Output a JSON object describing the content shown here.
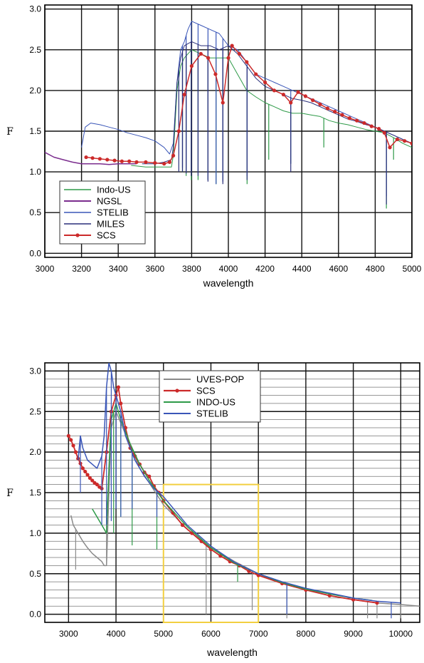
{
  "chart_data": [
    {
      "type": "line",
      "xlabel": "wavelength",
      "ylabel": "F",
      "xlim": [
        3000,
        5000
      ],
      "ylim": [
        -0.05,
        3.05
      ],
      "xticks": [
        3000,
        3200,
        3400,
        3600,
        3800,
        4000,
        4200,
        4400,
        4600,
        4800,
        5000
      ],
      "yticks": [
        "0.0",
        "0.5",
        "1.0",
        "1.5",
        "2.0",
        "2.5",
        "3.0"
      ],
      "grid": true,
      "legend_position": "lower-left",
      "series": [
        {
          "name": "Indo-US",
          "color": "#2e9a48",
          "width": 1,
          "x": [
            3470,
            3550,
            3650,
            3690,
            3700,
            3720,
            3740,
            3760,
            3800,
            3850,
            3900,
            3950,
            4000,
            4050,
            4100,
            4150,
            4200,
            4250,
            4300,
            4350,
            4400,
            4450,
            4500,
            4550,
            4600,
            4650,
            4700,
            4750,
            4800,
            4850,
            4900,
            4950,
            5000
          ],
          "y": [
            1.08,
            1.06,
            1.06,
            1.06,
            1.2,
            2.0,
            2.3,
            2.4,
            2.5,
            2.45,
            2.4,
            2.4,
            2.4,
            2.2,
            2.0,
            1.92,
            1.85,
            1.8,
            1.75,
            1.72,
            1.72,
            1.7,
            1.68,
            1.63,
            1.6,
            1.58,
            1.55,
            1.52,
            1.5,
            1.48,
            1.42,
            1.35,
            1.3
          ],
          "dips": [
            [
              3750,
              1.0
            ],
            [
              3770,
              0.95
            ],
            [
              3798,
              0.9
            ],
            [
              3835,
              0.9
            ],
            [
              3889,
              0.9
            ],
            [
              3933,
              0.85
            ],
            [
              3970,
              0.9
            ],
            [
              4102,
              0.85
            ],
            [
              4220,
              1.15
            ],
            [
              4340,
              1.1
            ],
            [
              4520,
              1.3
            ],
            [
              4861,
              0.55
            ],
            [
              4900,
              1.15
            ]
          ]
        },
        {
          "name": "NGSL",
          "color": "#7b2d8e",
          "width": 1.5,
          "x": [
            3000,
            3050,
            3100,
            3150,
            3200,
            3250,
            3300,
            3350,
            3400,
            3450,
            3500
          ],
          "y": [
            1.24,
            1.18,
            1.15,
            1.12,
            1.1,
            1.1,
            1.1,
            1.09,
            1.1,
            1.1,
            1.1
          ]
        },
        {
          "name": "STELIB",
          "color": "#3a56b8",
          "width": 1,
          "x": [
            3200,
            3220,
            3250,
            3300,
            3350,
            3400,
            3450,
            3500,
            3550,
            3600,
            3650,
            3680,
            3700,
            3720,
            3740,
            3760,
            3780,
            3800,
            3850,
            3900,
            3950,
            4000,
            4050,
            4100,
            4150,
            4200,
            4250,
            4300,
            4350,
            4400,
            4450,
            4500,
            4550,
            4600,
            4650,
            4700,
            4750,
            4800,
            4850,
            4900,
            4950,
            5000
          ],
          "y": [
            1.3,
            1.55,
            1.6,
            1.58,
            1.55,
            1.52,
            1.48,
            1.45,
            1.42,
            1.38,
            1.3,
            1.22,
            1.35,
            2.1,
            2.5,
            2.6,
            2.75,
            2.85,
            2.8,
            2.75,
            2.7,
            2.55,
            2.5,
            2.35,
            2.2,
            2.15,
            2.1,
            2.05,
            2.0,
            1.95,
            1.9,
            1.85,
            1.8,
            1.75,
            1.7,
            1.65,
            1.6,
            1.55,
            1.5,
            1.45,
            1.4,
            1.35
          ],
          "dips": [
            [
              3750,
              1.05
            ],
            [
              3770,
              1.0
            ],
            [
              3798,
              1.0
            ],
            [
              3835,
              0.98
            ],
            [
              3889,
              0.9
            ],
            [
              3933,
              0.85
            ],
            [
              3970,
              0.88
            ],
            [
              4102,
              0.95
            ],
            [
              4340,
              1.1
            ],
            [
              4861,
              0.7
            ]
          ]
        },
        {
          "name": "MILES",
          "color": "#2a2f7a",
          "width": 1,
          "x": [
            3530,
            3600,
            3650,
            3690,
            3700,
            3720,
            3740,
            3760,
            3800,
            3850,
            3900,
            3950,
            4000,
            4050,
            4100,
            4150,
            4200,
            4250,
            4300,
            4350,
            4400,
            4450,
            4500,
            4550,
            4600,
            4650,
            4700,
            4750,
            4800,
            4850,
            4900,
            4950,
            5000
          ],
          "y": [
            1.1,
            1.1,
            1.12,
            1.15,
            1.3,
            2.1,
            2.4,
            2.55,
            2.6,
            2.55,
            2.55,
            2.5,
            2.55,
            2.45,
            2.3,
            2.15,
            2.05,
            2.0,
            1.95,
            1.9,
            1.88,
            1.85,
            1.8,
            1.75,
            1.7,
            1.65,
            1.62,
            1.58,
            1.55,
            1.5,
            1.45,
            1.4,
            1.35
          ],
          "dips": [
            [
              3730,
              1.0
            ],
            [
              3750,
              1.0
            ],
            [
              3770,
              0.98
            ],
            [
              3798,
              0.95
            ],
            [
              3835,
              0.95
            ],
            [
              3889,
              0.88
            ],
            [
              3970,
              0.85
            ],
            [
              4102,
              0.9
            ],
            [
              4340,
              1.0
            ],
            [
              4861,
              0.6
            ]
          ]
        },
        {
          "name": "SCS",
          "color": "#cc2a2a",
          "width": 1.5,
          "markers": true,
          "x": [
            3225,
            3260,
            3300,
            3340,
            3380,
            3420,
            3460,
            3500,
            3550,
            3600,
            3650,
            3680,
            3700,
            3730,
            3760,
            3800,
            3850,
            3890,
            3930,
            3970,
            4000,
            4020,
            4060,
            4100,
            4150,
            4200,
            4250,
            4300,
            4340,
            4380,
            4420,
            4460,
            4500,
            4540,
            4580,
            4620,
            4660,
            4700,
            4740,
            4780,
            4820,
            4850,
            4880,
            4920,
            4960,
            5000
          ],
          "y": [
            1.18,
            1.17,
            1.16,
            1.15,
            1.14,
            1.13,
            1.13,
            1.12,
            1.12,
            1.11,
            1.1,
            1.12,
            1.2,
            1.5,
            1.95,
            2.3,
            2.45,
            2.4,
            2.2,
            1.85,
            2.4,
            2.55,
            2.45,
            2.35,
            2.2,
            2.1,
            2.0,
            1.95,
            1.85,
            1.98,
            1.93,
            1.88,
            1.83,
            1.78,
            1.74,
            1.7,
            1.66,
            1.63,
            1.6,
            1.56,
            1.53,
            1.48,
            1.3,
            1.4,
            1.38,
            1.35
          ]
        }
      ]
    },
    {
      "type": "line",
      "xlabel": "wavelength",
      "ylabel": "F",
      "xlim": [
        2500,
        10400
      ],
      "ylim": [
        -0.1,
        3.1
      ],
      "xticks": [
        3000,
        4000,
        5000,
        6000,
        7000,
        8000,
        9000,
        10000
      ],
      "yticks": [
        "0.0",
        "0.5",
        "1.0",
        "1.5",
        "2.0",
        "2.5",
        "3.0"
      ],
      "grid": true,
      "legend_position": "top-center",
      "highlight_box": {
        "x": [
          5000,
          7000
        ],
        "y": [
          -0.1,
          1.6
        ],
        "color": "#f2cf40"
      },
      "series": [
        {
          "name": "UVES-POP",
          "color": "#8a8a8a",
          "width": 1.5,
          "x": [
            3050,
            3100,
            3150,
            3200,
            3300,
            3400,
            3500,
            3600,
            3700,
            3750,
            3800,
            3850,
            3900,
            4000,
            4500,
            5000,
            5500,
            6000,
            6500,
            7000,
            7500,
            8000,
            8500,
            9000,
            9500,
            10000,
            10400
          ],
          "y": [
            1.22,
            1.1,
            1.05,
            1.0,
            0.9,
            0.82,
            0.75,
            0.7,
            0.65,
            0.6,
            0.6,
            1.5,
            2.3,
            2.5,
            1.8,
            1.35,
            1.05,
            0.82,
            0.65,
            0.5,
            0.38,
            0.3,
            0.23,
            0.18,
            0.14,
            0.12,
            0.1
          ],
          "dips": [
            [
              3150,
              0.55
            ],
            [
              3800,
              1.4
            ],
            [
              5900,
              0.0
            ],
            [
              6563,
              0.6
            ],
            [
              6870,
              0.05
            ],
            [
              7600,
              -0.05
            ],
            [
              9300,
              -0.05
            ],
            [
              9500,
              -0.05
            ],
            [
              10000,
              -0.05
            ]
          ]
        },
        {
          "name": "SCS",
          "color": "#cc2a2a",
          "width": 1.8,
          "markers": true,
          "x": [
            3000,
            3050,
            3100,
            3150,
            3200,
            3250,
            3300,
            3350,
            3400,
            3450,
            3500,
            3550,
            3600,
            3650,
            3700,
            3800,
            3900,
            4000,
            4050,
            4100,
            4200,
            4300,
            4400,
            4500,
            4600,
            4700,
            4800,
            4900,
            5000,
            5200,
            5400,
            5600,
            5800,
            6000,
            6200,
            6400,
            6600,
            6800,
            7000,
            7500,
            8000,
            8500,
            9000,
            9500
          ],
          "y": [
            2.2,
            2.15,
            2.08,
            2.0,
            1.92,
            1.86,
            1.8,
            1.76,
            1.72,
            1.68,
            1.65,
            1.62,
            1.6,
            1.57,
            1.55,
            2.0,
            2.5,
            2.7,
            2.8,
            2.6,
            2.3,
            2.05,
            1.95,
            1.85,
            1.75,
            1.7,
            1.58,
            1.5,
            1.4,
            1.25,
            1.1,
            1.0,
            0.9,
            0.8,
            0.72,
            0.65,
            0.6,
            0.53,
            0.48,
            0.38,
            0.3,
            0.23,
            0.18,
            0.14
          ]
        },
        {
          "name": "INDO-US",
          "color": "#2e9a48",
          "width": 1.5,
          "x": [
            3500,
            3600,
            3700,
            3800,
            3850,
            3900,
            4000,
            4100,
            4300,
            4500,
            4700,
            5000,
            5500,
            6000,
            6500,
            7000,
            7500,
            8000,
            8500,
            9000,
            9400
          ],
          "y": [
            1.3,
            1.2,
            1.1,
            1.0,
            1.8,
            2.4,
            2.6,
            2.4,
            2.1,
            1.85,
            1.65,
            1.4,
            1.08,
            0.82,
            0.63,
            0.5,
            0.39,
            0.31,
            0.25,
            0.2,
            0.17
          ],
          "dips": [
            [
              3950,
              1.0
            ],
            [
              4100,
              1.2
            ],
            [
              4340,
              0.85
            ],
            [
              4861,
              0.8
            ],
            [
              6563,
              0.4
            ]
          ]
        },
        {
          "name": "STELIB",
          "color": "#3a56b8",
          "width": 1.5,
          "x": [
            3200,
            3250,
            3300,
            3400,
            3500,
            3600,
            3700,
            3750,
            3800,
            3850,
            3900,
            3950,
            4000,
            4100,
            4200,
            4400,
            4600,
            4800,
            5000,
            5500,
            6000,
            6500,
            7000,
            7500,
            8000,
            8500,
            9000,
            9500,
            10000
          ],
          "y": [
            1.9,
            2.2,
            2.05,
            1.9,
            1.85,
            1.8,
            1.95,
            2.2,
            2.8,
            3.1,
            3.0,
            2.8,
            2.7,
            2.5,
            2.2,
            1.9,
            1.7,
            1.55,
            1.45,
            1.1,
            0.84,
            0.64,
            0.5,
            0.4,
            0.32,
            0.26,
            0.2,
            0.16,
            0.14
          ],
          "dips": [
            [
              3250,
              1.5
            ],
            [
              3700,
              1.1
            ],
            [
              3800,
              1.1
            ],
            [
              3900,
              1.15
            ],
            [
              4000,
              1.3
            ],
            [
              4102,
              1.2
            ],
            [
              4340,
              1.3
            ],
            [
              4861,
              1.2
            ],
            [
              7600,
              0.0
            ],
            [
              9800,
              -0.05
            ]
          ]
        }
      ]
    }
  ]
}
